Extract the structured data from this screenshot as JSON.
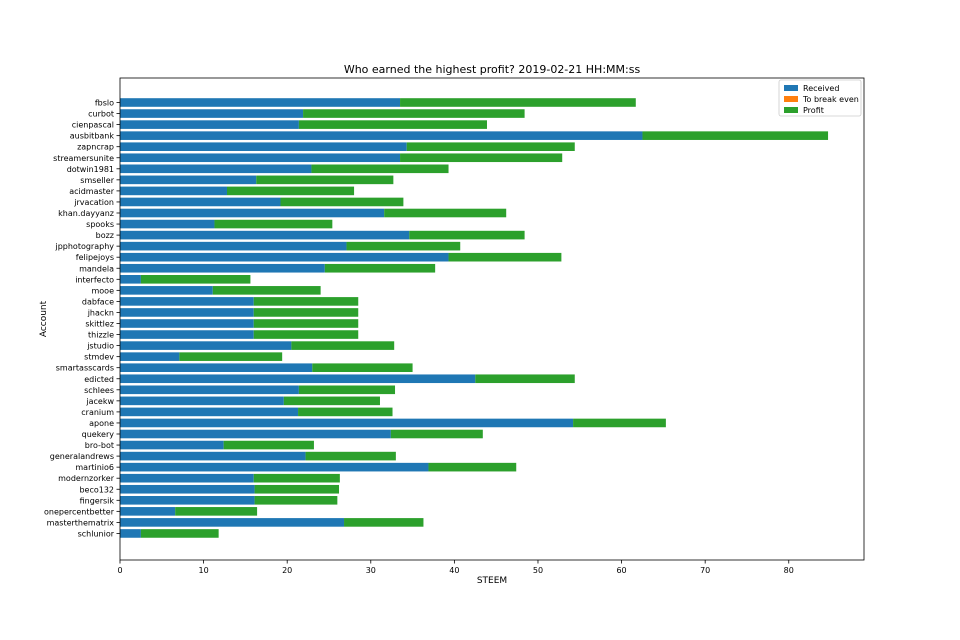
{
  "chart_data": {
    "type": "bar",
    "orientation": "horizontal",
    "stacked": true,
    "title": "Who earned the highest profit? 2019-02-21 HH:MM:ss",
    "xlabel": "STEEM",
    "ylabel": "Account",
    "xlim": [
      0,
      89
    ],
    "xticks": [
      0,
      10,
      20,
      30,
      40,
      50,
      60,
      70,
      80
    ],
    "legend_position": "top-right",
    "categories": [
      "fbslo",
      "curbot",
      "cienpascal",
      "ausbitbank",
      "zapncrap",
      "streamersunite",
      "dotwin1981",
      "smseller",
      "acidmaster",
      "jrvacation",
      "khan.dayyanz",
      "spooks",
      "bozz",
      "jpphotography",
      "felipejoys",
      "mandela",
      "interfecto",
      "mooe",
      "dabface",
      "jhackn",
      "skittlez",
      "thizzle",
      "jstudio",
      "stmdev",
      "smartasscards",
      "edicted",
      "schlees",
      "jacekw",
      "cranium",
      "apone",
      "quekery",
      "bro-bot",
      "generalandrews",
      "martinio6",
      "modernzorker",
      "beco132",
      "fingersik",
      "onepercentbetter",
      "masterthematrix",
      "schlunior"
    ],
    "series": [
      {
        "name": "Received",
        "color": "#1f77b4",
        "values": [
          33.5,
          21.9,
          21.4,
          62.5,
          34.3,
          33.5,
          22.9,
          16.3,
          12.8,
          19.2,
          31.6,
          11.3,
          34.6,
          27.1,
          39.3,
          24.5,
          2.5,
          11.1,
          16.0,
          16.0,
          16.0,
          16.0,
          20.5,
          7.1,
          23.0,
          42.5,
          21.4,
          19.6,
          21.3,
          54.2,
          32.4,
          12.4,
          22.2,
          36.9,
          16.0,
          16.1,
          16.1,
          6.6,
          26.8,
          2.5
        ]
      },
      {
        "name": "To break even",
        "color": "#ff7f0e",
        "values": [
          0,
          0,
          0,
          0,
          0,
          0,
          0,
          0,
          0,
          0,
          0,
          0,
          0,
          0,
          0,
          0,
          0,
          0,
          0,
          0,
          0,
          0,
          0,
          0,
          0,
          0,
          0,
          0,
          0,
          0,
          0,
          0,
          0,
          0,
          0,
          0,
          0,
          0,
          0,
          0
        ]
      },
      {
        "name": "Profit",
        "color": "#2ca02c",
        "values": [
          28.2,
          26.5,
          22.5,
          22.2,
          20.1,
          19.4,
          16.4,
          16.4,
          15.2,
          14.7,
          14.6,
          14.1,
          13.8,
          13.6,
          13.5,
          13.2,
          13.1,
          12.9,
          12.5,
          12.5,
          12.5,
          12.5,
          12.3,
          12.3,
          12.0,
          11.9,
          11.5,
          11.5,
          11.3,
          11.1,
          11.0,
          10.8,
          10.8,
          10.5,
          10.3,
          10.1,
          9.9,
          9.8,
          9.5,
          9.3
        ]
      }
    ]
  }
}
